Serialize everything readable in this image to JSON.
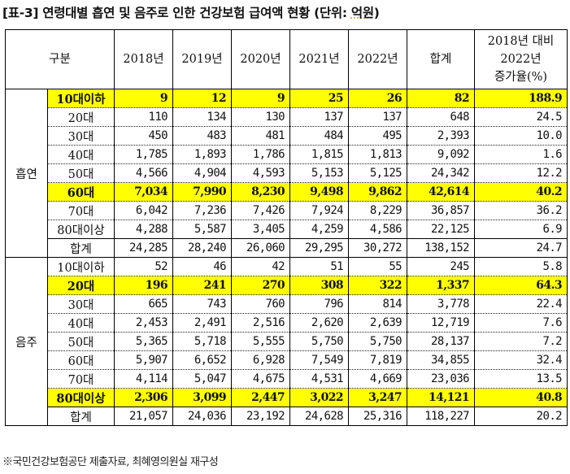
{
  "title": {
    "prefix": "[표-3] 연령대별 흡연 및 음주로 인한 건강보험 급여액 현황 (단위: ",
    "unit": "억원",
    "suffix": ")"
  },
  "table": {
    "headers": {
      "category": "구분",
      "y2018": "2018년",
      "y2019": "2019년",
      "y2020": "2020년",
      "y2021": "2021년",
      "y2022": "2022년",
      "total": "합계",
      "growth_line1": "2018년 대비",
      "growth_line2": "2022년",
      "growth_line3": "증가율(%)"
    },
    "sections": [
      {
        "name": "흡연",
        "rows": [
          {
            "label": "10대이하",
            "v2018": "9",
            "v2019": "12",
            "v2020": "9",
            "v2021": "25",
            "v2022": "26",
            "total": "82",
            "growth": "188.9",
            "highlight": true
          },
          {
            "label": "20대",
            "v2018": "110",
            "v2019": "134",
            "v2020": "130",
            "v2021": "137",
            "v2022": "137",
            "total": "648",
            "growth": "24.5"
          },
          {
            "label": "30대",
            "v2018": "450",
            "v2019": "483",
            "v2020": "481",
            "v2021": "484",
            "v2022": "495",
            "total": "2,393",
            "growth": "10.0"
          },
          {
            "label": "40대",
            "v2018": "1,785",
            "v2019": "1,893",
            "v2020": "1,786",
            "v2021": "1,815",
            "v2022": "1,813",
            "total": "9,092",
            "growth": "1.6"
          },
          {
            "label": "50대",
            "v2018": "4,566",
            "v2019": "4,904",
            "v2020": "4,593",
            "v2021": "5,153",
            "v2022": "5,125",
            "total": "24,342",
            "growth": "12.2"
          },
          {
            "label": "60대",
            "v2018": "7,034",
            "v2019": "7,990",
            "v2020": "8,230",
            "v2021": "9,498",
            "v2022": "9,862",
            "total": "42,614",
            "growth": "40.2",
            "highlight": true
          },
          {
            "label": "70대",
            "v2018": "6,042",
            "v2019": "7,236",
            "v2020": "7,426",
            "v2021": "7,924",
            "v2022": "8,229",
            "total": "36,857",
            "growth": "36.2"
          },
          {
            "label": "80대이상",
            "v2018": "4,288",
            "v2019": "5,587",
            "v2020": "3,405",
            "v2021": "4,259",
            "v2022": "4,586",
            "total": "22,125",
            "growth": "6.9"
          },
          {
            "label": "합계",
            "v2018": "24,285",
            "v2019": "28,240",
            "v2020": "26,060",
            "v2021": "29,295",
            "v2022": "30,272",
            "total": "138,152",
            "growth": "24.7",
            "sum": true
          }
        ]
      },
      {
        "name": "음주",
        "rows": [
          {
            "label": "10대이하",
            "v2018": "52",
            "v2019": "46",
            "v2020": "42",
            "v2021": "51",
            "v2022": "55",
            "total": "245",
            "growth": "5.8"
          },
          {
            "label": "20대",
            "v2018": "196",
            "v2019": "241",
            "v2020": "270",
            "v2021": "308",
            "v2022": "322",
            "total": "1,337",
            "growth": "64.3",
            "highlight": true
          },
          {
            "label": "30대",
            "v2018": "665",
            "v2019": "743",
            "v2020": "760",
            "v2021": "796",
            "v2022": "814",
            "total": "3,778",
            "growth": "22.4"
          },
          {
            "label": "40대",
            "v2018": "2,453",
            "v2019": "2,491",
            "v2020": "2,516",
            "v2021": "2,620",
            "v2022": "2,639",
            "total": "12,719",
            "growth": "7.6"
          },
          {
            "label": "50대",
            "v2018": "5,365",
            "v2019": "5,718",
            "v2020": "5,555",
            "v2021": "5,750",
            "v2022": "5,750",
            "total": "28,137",
            "growth": "7.2"
          },
          {
            "label": "60대",
            "v2018": "5,907",
            "v2019": "6,652",
            "v2020": "6,928",
            "v2021": "7,549",
            "v2022": "7,819",
            "total": "34,855",
            "growth": "32.4"
          },
          {
            "label": "70대",
            "v2018": "4,114",
            "v2019": "5,047",
            "v2020": "4,675",
            "v2021": "4,531",
            "v2022": "4,669",
            "total": "23,036",
            "growth": "13.5"
          },
          {
            "label": "80대이상",
            "v2018": "2,306",
            "v2019": "3,099",
            "v2020": "2,447",
            "v2021": "3,022",
            "v2022": "3,247",
            "total": "14,121",
            "growth": "40.8",
            "highlight": true
          },
          {
            "label": "합계",
            "v2018": "21,057",
            "v2019": "24,036",
            "v2020": "23,192",
            "v2021": "24,628",
            "v2022": "25,316",
            "total": "118,227",
            "growth": "20.2",
            "sum": true
          }
        ]
      }
    ]
  },
  "footnote": "※국민건강보험공단 제출자료, 최혜영의원실 재구성",
  "colors": {
    "highlight": "#ffff00",
    "border": "#000000"
  }
}
